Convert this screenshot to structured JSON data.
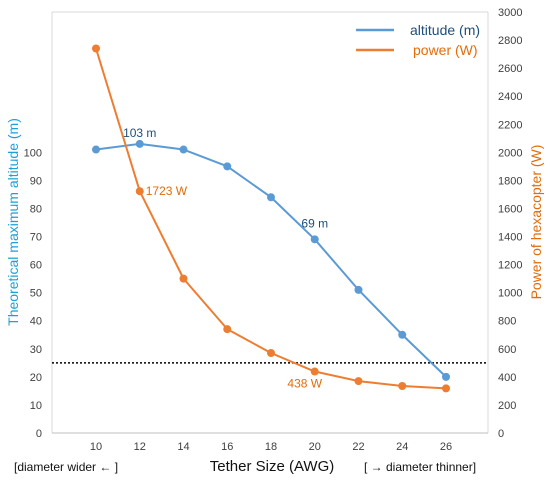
{
  "chart_data": {
    "type": "line",
    "xlabel": "Tether Size (AWG)",
    "x_note_left": "[diameter wider ← ]",
    "x_note_right": "[ → diameter thinner]",
    "ylabel_left": "Theoretical maximum altitude (m)",
    "ylabel_right": "Power of hexacopter  (W)",
    "categories": [
      "10",
      "12",
      "14",
      "16",
      "18",
      "20",
      "22",
      "24",
      "26"
    ],
    "ylim_left": [
      0,
      150
    ],
    "yticks_left": [
      0,
      10,
      20,
      30,
      40,
      50,
      60,
      70,
      80,
      90,
      100
    ],
    "ylim_right": [
      0,
      3000
    ],
    "yticks_right": [
      0,
      200,
      400,
      600,
      800,
      1000,
      1200,
      1400,
      1600,
      1800,
      2000,
      2200,
      2400,
      2600,
      2800,
      3000
    ],
    "reference_line_left": 25,
    "series": [
      {
        "name": "altitude (m)",
        "axis": "left",
        "color": "#5B9BD5",
        "label_color": "#1F4E79",
        "values": [
          101,
          103,
          101,
          95,
          84,
          69,
          51,
          35,
          20
        ]
      },
      {
        "name": "power (W)",
        "axis": "right",
        "color": "#ED7D31",
        "label_color": "#E36C09",
        "values": [
          2740,
          1723,
          1100,
          740,
          570,
          438,
          370,
          335,
          318
        ]
      }
    ],
    "annotations": [
      {
        "series": 0,
        "index": 1,
        "text": "103 m"
      },
      {
        "series": 0,
        "index": 5,
        "text": "69 m"
      },
      {
        "series": 1,
        "index": 1,
        "text": "1723 W"
      },
      {
        "series": 1,
        "index": 5,
        "text": "438 W"
      }
    ],
    "legend_position": "top-right",
    "grid": false
  }
}
